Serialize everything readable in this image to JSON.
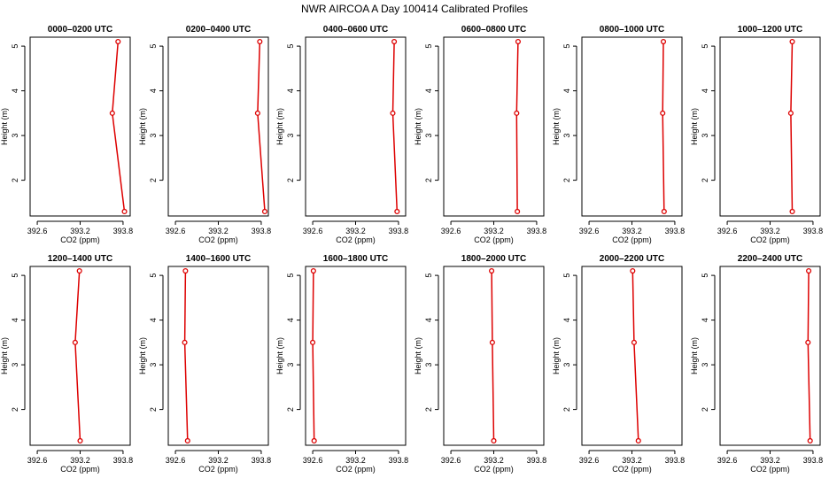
{
  "title": "NWR AIRCOA A  Day 100414  Calibrated Profiles",
  "chart_data": {
    "type": "line",
    "title": "NWR AIRCOA A  Day 100414  Calibrated Profiles",
    "xlabel": "CO2 (ppm)",
    "ylabel": "Height (m)",
    "xlim": [
      392.5,
      393.9
    ],
    "ylim": [
      1.2,
      5.2
    ],
    "x_ticks": [
      "392.6",
      "393.2",
      "393.8"
    ],
    "x_tick_values": [
      392.6,
      393.2,
      393.8
    ],
    "y_ticks": [
      "2",
      "3",
      "4",
      "5"
    ],
    "y_tick_values": [
      2,
      3,
      4,
      5
    ],
    "heights": [
      5.1,
      3.5,
      1.3
    ],
    "colors": {
      "series": "#dd0000"
    },
    "panels": [
      {
        "label": "0000–0200 UTC",
        "co2": [
          393.73,
          393.65,
          393.82
        ]
      },
      {
        "label": "0200–0400 UTC",
        "co2": [
          393.78,
          393.75,
          393.85
        ]
      },
      {
        "label": "0400–0600 UTC",
        "co2": [
          393.74,
          393.72,
          393.78
        ]
      },
      {
        "label": "0600–0800 UTC",
        "co2": [
          393.54,
          393.52,
          393.53
        ]
      },
      {
        "label": "0800–1000 UTC",
        "co2": [
          393.64,
          393.63,
          393.65
        ]
      },
      {
        "label": "1000–1200 UTC",
        "co2": [
          393.51,
          393.49,
          393.51
        ]
      },
      {
        "label": "1200–1400 UTC",
        "co2": [
          393.19,
          393.13,
          393.2
        ]
      },
      {
        "label": "1400–1600 UTC",
        "co2": [
          392.74,
          392.73,
          392.77
        ]
      },
      {
        "label": "1600–1800 UTC",
        "co2": [
          392.61,
          392.6,
          392.62
        ]
      },
      {
        "label": "1800–2000 UTC",
        "co2": [
          393.17,
          393.18,
          393.2
        ]
      },
      {
        "label": "2000–2200 UTC",
        "co2": [
          393.21,
          393.23,
          393.29
        ]
      },
      {
        "label": "2200–2400 UTC",
        "co2": [
          393.74,
          393.73,
          393.76
        ]
      }
    ]
  }
}
